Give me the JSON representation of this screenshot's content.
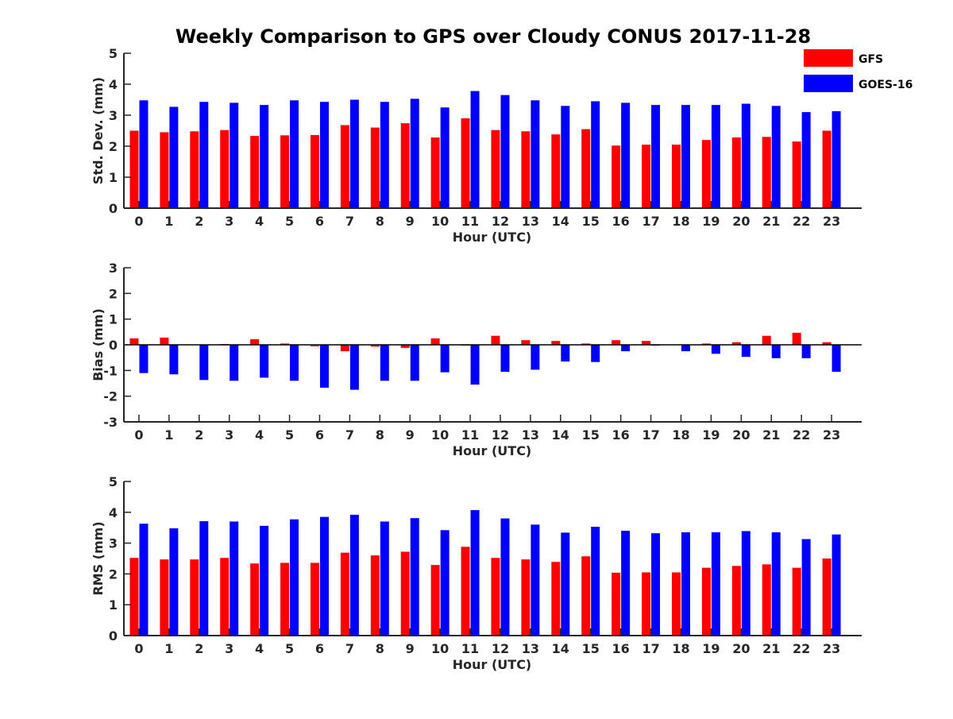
{
  "chart_data": {
    "title": "Weekly Comparison to GPS over Cloudy CONUS 2017-11-28",
    "legend": {
      "position": "top-right",
      "entries": [
        {
          "name": "GFS",
          "color": "#ff0000"
        },
        {
          "name": "GOES-16",
          "color": "#0000ff"
        }
      ]
    },
    "panels": [
      {
        "type": "bar",
        "ylabel": "Std. Dev. (mm)",
        "xlabel": "Hour (UTC)",
        "ylim": [
          0,
          5
        ],
        "yticks": [
          0,
          1,
          2,
          3,
          4,
          5
        ],
        "categories": [
          "0",
          "1",
          "2",
          "3",
          "4",
          "5",
          "6",
          "7",
          "8",
          "9",
          "10",
          "11",
          "12",
          "13",
          "14",
          "15",
          "16",
          "17",
          "18",
          "19",
          "20",
          "21",
          "22",
          "23"
        ],
        "series": [
          {
            "name": "GFS",
            "color": "#ff0000",
            "values": [
              2.5,
              2.45,
              2.48,
              2.52,
              2.33,
              2.35,
              2.36,
              2.68,
              2.6,
              2.74,
              2.28,
              2.9,
              2.52,
              2.48,
              2.38,
              2.55,
              2.02,
              2.05,
              2.05,
              2.2,
              2.28,
              2.3,
              2.15,
              2.5
            ]
          },
          {
            "name": "GOES-16",
            "color": "#0000ff",
            "values": [
              3.48,
              3.27,
              3.43,
              3.4,
              3.33,
              3.48,
              3.43,
              3.5,
              3.43,
              3.53,
              3.25,
              3.78,
              3.65,
              3.48,
              3.3,
              3.45,
              3.4,
              3.33,
              3.33,
              3.33,
              3.37,
              3.3,
              3.1,
              3.13
            ]
          }
        ]
      },
      {
        "type": "bar",
        "ylabel": "Bias (mm)",
        "xlabel": "Hour (UTC)",
        "ylim": [
          -3,
          3
        ],
        "yticks": [
          -3,
          -2,
          -1,
          0,
          1,
          2,
          3
        ],
        "categories": [
          "0",
          "1",
          "2",
          "3",
          "4",
          "5",
          "6",
          "7",
          "8",
          "9",
          "10",
          "11",
          "12",
          "13",
          "14",
          "15",
          "16",
          "17",
          "18",
          "19",
          "20",
          "21",
          "22",
          "23"
        ],
        "series": [
          {
            "name": "GFS",
            "color": "#ff0000",
            "values": [
              0.25,
              0.28,
              0.0,
              0.03,
              0.22,
              0.05,
              -0.06,
              -0.25,
              -0.07,
              -0.12,
              0.25,
              -0.03,
              0.35,
              0.18,
              0.15,
              0.05,
              0.18,
              0.15,
              0.0,
              0.05,
              0.1,
              0.35,
              0.47,
              0.1
            ]
          },
          {
            "name": "GOES-16",
            "color": "#0000ff",
            "values": [
              -1.1,
              -1.15,
              -1.37,
              -1.4,
              -1.28,
              -1.4,
              -1.67,
              -1.75,
              -1.4,
              -1.4,
              -1.07,
              -1.55,
              -1.05,
              -0.97,
              -0.65,
              -0.67,
              -0.25,
              -0.03,
              -0.25,
              -0.35,
              -0.47,
              -0.52,
              -0.52,
              -1.05
            ]
          }
        ]
      },
      {
        "type": "bar",
        "ylabel": "RMS (mm)",
        "xlabel": "Hour (UTC)",
        "ylim": [
          0,
          5
        ],
        "yticks": [
          0,
          1,
          2,
          3,
          4,
          5
        ],
        "categories": [
          "0",
          "1",
          "2",
          "3",
          "4",
          "5",
          "6",
          "7",
          "8",
          "9",
          "10",
          "11",
          "12",
          "13",
          "14",
          "15",
          "16",
          "17",
          "18",
          "19",
          "20",
          "21",
          "22",
          "23"
        ],
        "series": [
          {
            "name": "GFS",
            "color": "#ff0000",
            "values": [
              2.52,
              2.47,
              2.47,
              2.52,
              2.34,
              2.36,
              2.36,
              2.69,
              2.6,
              2.72,
              2.29,
              2.88,
              2.52,
              2.47,
              2.39,
              2.57,
              2.04,
              2.05,
              2.05,
              2.2,
              2.26,
              2.31,
              2.2,
              2.5
            ]
          },
          {
            "name": "GOES-16",
            "color": "#0000ff",
            "values": [
              3.63,
              3.48,
              3.71,
              3.7,
              3.56,
              3.77,
              3.85,
              3.92,
              3.7,
              3.81,
              3.42,
              4.07,
              3.8,
              3.6,
              3.34,
              3.53,
              3.4,
              3.32,
              3.35,
              3.35,
              3.39,
              3.35,
              3.13,
              3.28
            ]
          }
        ]
      }
    ]
  }
}
